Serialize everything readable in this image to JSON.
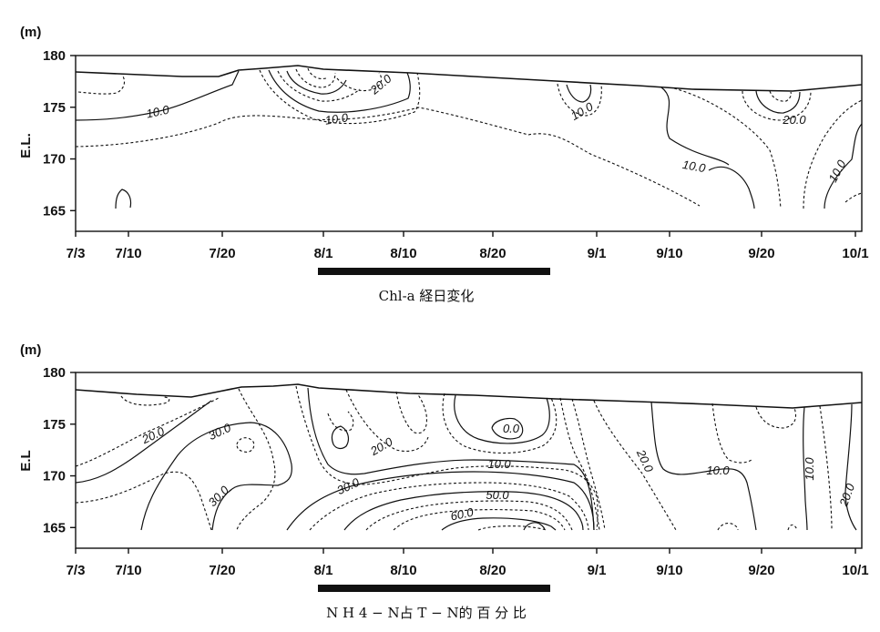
{
  "chart_data": [
    {
      "type": "heatmap",
      "title": "Chl-a 経日変化",
      "ylabel": "E.L.",
      "unit": "(m)",
      "y_ticks": [
        "180",
        "175",
        "170",
        "165"
      ],
      "ylim": [
        163,
        180
      ],
      "x_ticks": [
        "7/3",
        "7/10",
        "7/20",
        "8/1",
        "8/10",
        "8/20",
        "9/1",
        "9/10",
        "9/20",
        "10/1"
      ],
      "contour_labels": [
        "10.0",
        "20.0",
        "10.0",
        "10.0",
        "10.0",
        "20.0",
        "10.0"
      ],
      "highlight_period": [
        "7/31",
        "8/26"
      ]
    },
    {
      "type": "heatmap",
      "title": "N H 4 − N占 T − N的 百 分 比",
      "ylabel": "E.L",
      "unit": "(m)",
      "y_ticks": [
        "180",
        "175",
        "170",
        "165"
      ],
      "ylim": [
        163,
        180
      ],
      "x_ticks": [
        "7/3",
        "7/10",
        "7/20",
        "8/1",
        "8/10",
        "8/20",
        "9/1",
        "9/10",
        "9/20",
        "10/1"
      ],
      "contour_labels": [
        "20.0",
        "30.0",
        "30.0",
        "20.0",
        "0.0",
        "10.0",
        "30.0",
        "50.0",
        "60.0",
        "20.0",
        "10.0",
        "10.0",
        "20.0"
      ],
      "highlight_period": [
        "7/31",
        "8/26"
      ]
    }
  ]
}
